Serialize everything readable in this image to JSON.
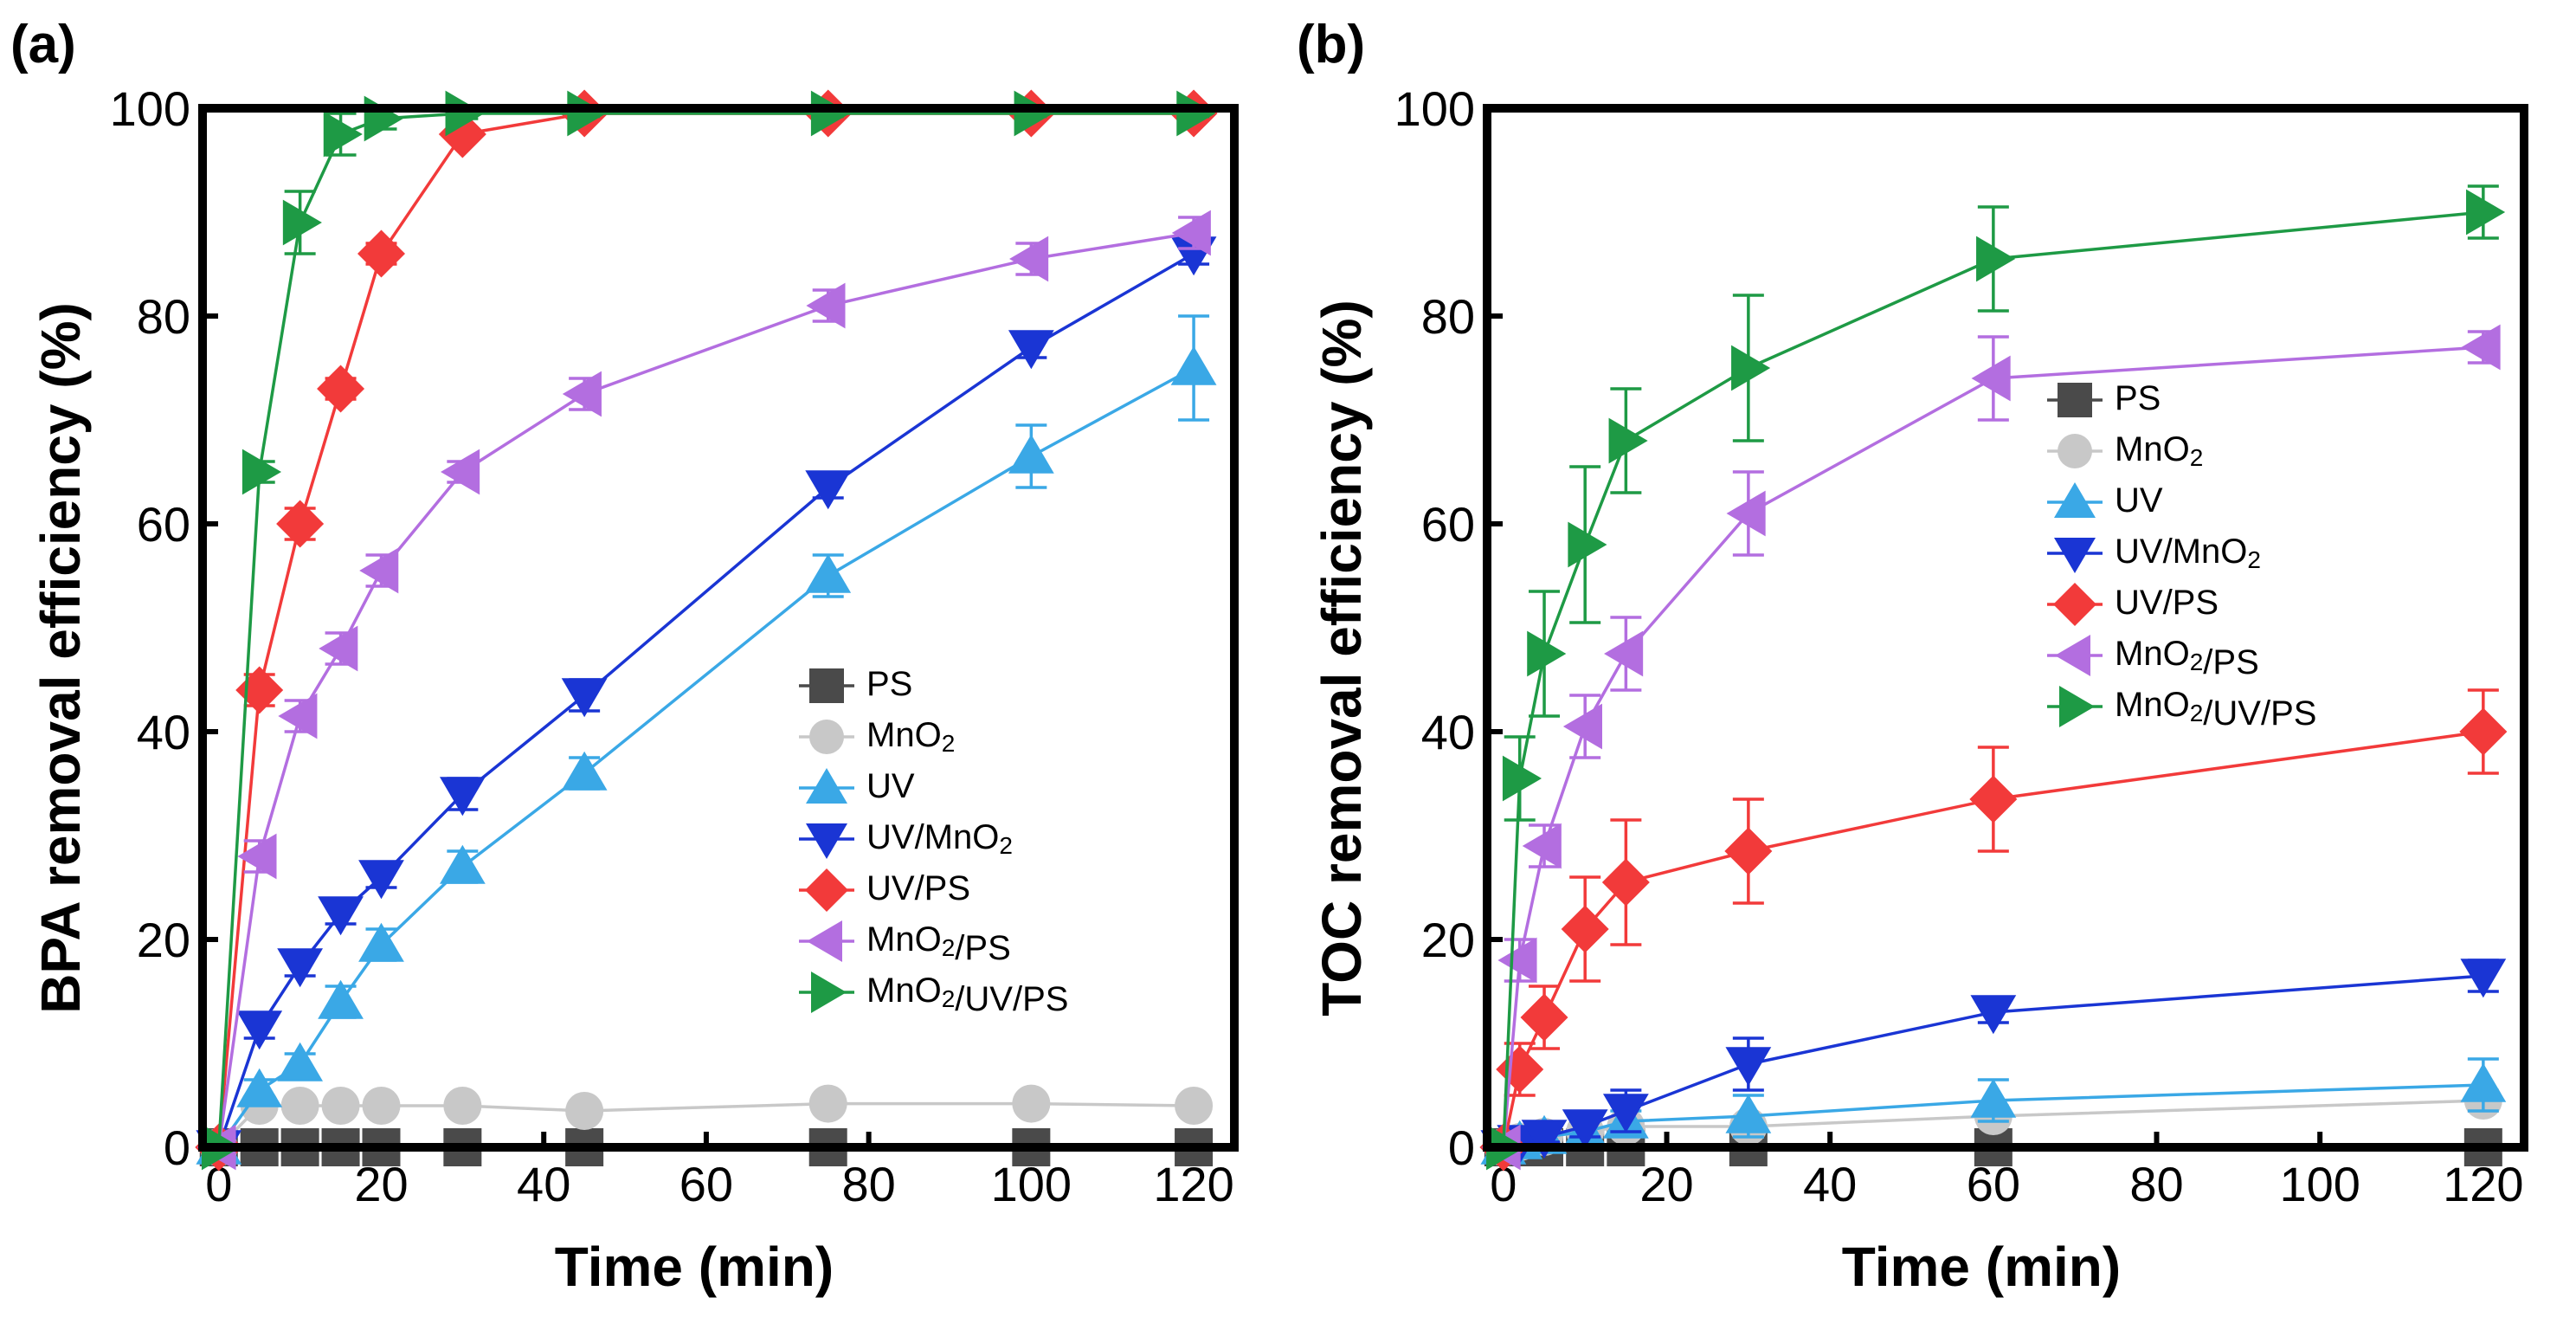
{
  "chart_data": [
    {
      "type": "line",
      "panel_label": "(a)",
      "xlabel": "Time (min)",
      "ylabel": "BPA removal efficiency (%)",
      "xlim": [
        -2,
        125
      ],
      "ylim": [
        0,
        100
      ],
      "xticks": [
        0,
        20,
        40,
        60,
        80,
        100,
        120
      ],
      "yticks": [
        0,
        20,
        40,
        60,
        80,
        100
      ],
      "legend_position": "bottom-right",
      "series": [
        {
          "name": "PS",
          "color": "#4a4a4a",
          "marker": "square",
          "x": [
            0,
            5,
            10,
            15,
            20,
            30,
            45,
            75,
            100,
            120
          ],
          "y": [
            0,
            0,
            0,
            0,
            0,
            0,
            0,
            0,
            0,
            0
          ],
          "err": [
            0,
            0,
            0,
            0,
            0,
            0,
            0,
            0,
            0,
            0
          ]
        },
        {
          "name": "MnO2",
          "color": "#c8c8c8",
          "marker": "circle",
          "x": [
            0,
            5,
            10,
            15,
            20,
            30,
            45,
            75,
            100,
            120
          ],
          "y": [
            0,
            4,
            4,
            4,
            4,
            4,
            3.5,
            4.2,
            4.2,
            4
          ],
          "err": [
            0,
            0.8,
            0.8,
            0.8,
            0.8,
            0.8,
            0.8,
            0.8,
            0.8,
            0.8
          ]
        },
        {
          "name": "UV",
          "color": "#3aa8e6",
          "marker": "triangle-up",
          "x": [
            0,
            5,
            10,
            15,
            20,
            30,
            45,
            75,
            100,
            120
          ],
          "y": [
            0,
            5.5,
            8,
            14,
            19.5,
            27,
            36,
            55,
            66.5,
            75
          ],
          "err": [
            0,
            1,
            1,
            1.5,
            1.5,
            1.5,
            1.5,
            2,
            3,
            5
          ]
        },
        {
          "name": "UV/MnO2",
          "color": "#1a35d4",
          "marker": "triangle-down",
          "x": [
            0,
            5,
            10,
            15,
            20,
            30,
            45,
            75,
            100,
            120
          ],
          "y": [
            0,
            11.5,
            17.5,
            22.5,
            26,
            34,
            43.5,
            63.5,
            77,
            86
          ],
          "err": [
            0,
            1,
            1,
            1,
            1,
            1.5,
            1.5,
            1,
            1,
            1
          ]
        },
        {
          "name": "UV/PS",
          "color": "#f23a3a",
          "marker": "diamond",
          "x": [
            0,
            5,
            10,
            15,
            20,
            30,
            45,
            75,
            100,
            120
          ],
          "y": [
            0,
            44,
            60,
            73,
            86,
            97.5,
            99.5,
            99.5,
            99.5,
            99.5
          ],
          "err": [
            0,
            1.5,
            1.5,
            1,
            1,
            0.5,
            0.3,
            0.3,
            0.3,
            0.3
          ]
        },
        {
          "name": "MnO2/PS",
          "color": "#b36ee0",
          "marker": "triangle-left",
          "x": [
            0,
            5,
            10,
            15,
            20,
            30,
            45,
            75,
            100,
            120
          ],
          "y": [
            0,
            28,
            41.5,
            48,
            55.5,
            65,
            72.5,
            81,
            85.5,
            88
          ],
          "err": [
            0,
            1.5,
            1.5,
            1.5,
            1.5,
            1,
            1.5,
            1.5,
            1.5,
            1.5
          ]
        },
        {
          "name": "MnO2/UV/PS",
          "color": "#1e9a45",
          "marker": "triangle-right",
          "x": [
            0,
            5,
            10,
            15,
            20,
            30,
            45,
            75,
            100,
            120
          ],
          "y": [
            0,
            65,
            89,
            97.5,
            99,
            99.5,
            99.5,
            99.5,
            99.5,
            99.5
          ],
          "err": [
            0,
            1,
            3,
            2,
            1,
            0.5,
            0.3,
            0.3,
            0.3,
            0.3
          ]
        }
      ]
    },
    {
      "type": "line",
      "panel_label": "(b)",
      "xlabel": "Time (min)",
      "ylabel": "TOC removal efficiency (%)",
      "xlim": [
        -2,
        125
      ],
      "ylim": [
        0,
        100
      ],
      "xticks": [
        0,
        20,
        40,
        60,
        80,
        100,
        120
      ],
      "yticks": [
        0,
        20,
        40,
        60,
        80,
        100
      ],
      "legend_position": "center-right",
      "series": [
        {
          "name": "PS",
          "color": "#4a4a4a",
          "marker": "square",
          "x": [
            0,
            2,
            5,
            10,
            15,
            30,
            60,
            120
          ],
          "y": [
            0,
            0,
            0,
            0,
            0,
            0,
            0,
            0
          ],
          "err": [
            0,
            0,
            0,
            0,
            0,
            0,
            0,
            0
          ]
        },
        {
          "name": "MnO2",
          "color": "#c8c8c8",
          "marker": "circle",
          "x": [
            0,
            2,
            5,
            10,
            15,
            30,
            60,
            120
          ],
          "y": [
            0,
            0.5,
            1,
            1.5,
            2,
            2,
            3,
            4.5
          ],
          "err": [
            0,
            0.5,
            0.5,
            0.5,
            0.5,
            1,
            1,
            1
          ]
        },
        {
          "name": "UV",
          "color": "#3aa8e6",
          "marker": "triangle-up",
          "x": [
            0,
            2,
            5,
            10,
            15,
            30,
            60,
            120
          ],
          "y": [
            0,
            0.5,
            1,
            1.5,
            2.5,
            3,
            4.5,
            6
          ],
          "err": [
            0,
            0.5,
            0.5,
            1,
            1,
            2,
            2,
            2.5
          ]
        },
        {
          "name": "UV/MnO2",
          "color": "#1a35d4",
          "marker": "triangle-down",
          "x": [
            0,
            2,
            5,
            10,
            15,
            30,
            60,
            120
          ],
          "y": [
            0,
            0.5,
            1,
            2,
            3.5,
            8,
            13,
            16.5
          ],
          "err": [
            0,
            0.5,
            0.5,
            1,
            2,
            2.5,
            1,
            1.5
          ]
        },
        {
          "name": "UV/PS",
          "color": "#f23a3a",
          "marker": "diamond",
          "x": [
            0,
            2,
            5,
            10,
            15,
            30,
            60,
            120
          ],
          "y": [
            0,
            7.5,
            12.5,
            21,
            25.5,
            28.5,
            33.5,
            40
          ],
          "err": [
            0,
            2.5,
            3,
            5,
            6,
            5,
            5,
            4
          ]
        },
        {
          "name": "MnO2/PS",
          "color": "#b36ee0",
          "marker": "triangle-left",
          "x": [
            0,
            2,
            5,
            10,
            15,
            30,
            60,
            120
          ],
          "y": [
            0,
            18,
            29,
            40.5,
            47.5,
            61,
            74,
            77
          ],
          "err": [
            0,
            2,
            2,
            3,
            3.5,
            4,
            4,
            1.5
          ]
        },
        {
          "name": "MnO2/UV/PS",
          "color": "#1e9a45",
          "marker": "triangle-right",
          "x": [
            0,
            2,
            5,
            10,
            15,
            30,
            60,
            120
          ],
          "y": [
            0,
            35.5,
            47.5,
            58,
            68,
            75,
            85.5,
            90
          ],
          "err": [
            0,
            4,
            6,
            7.5,
            5,
            7,
            5,
            2.5
          ]
        }
      ]
    }
  ]
}
